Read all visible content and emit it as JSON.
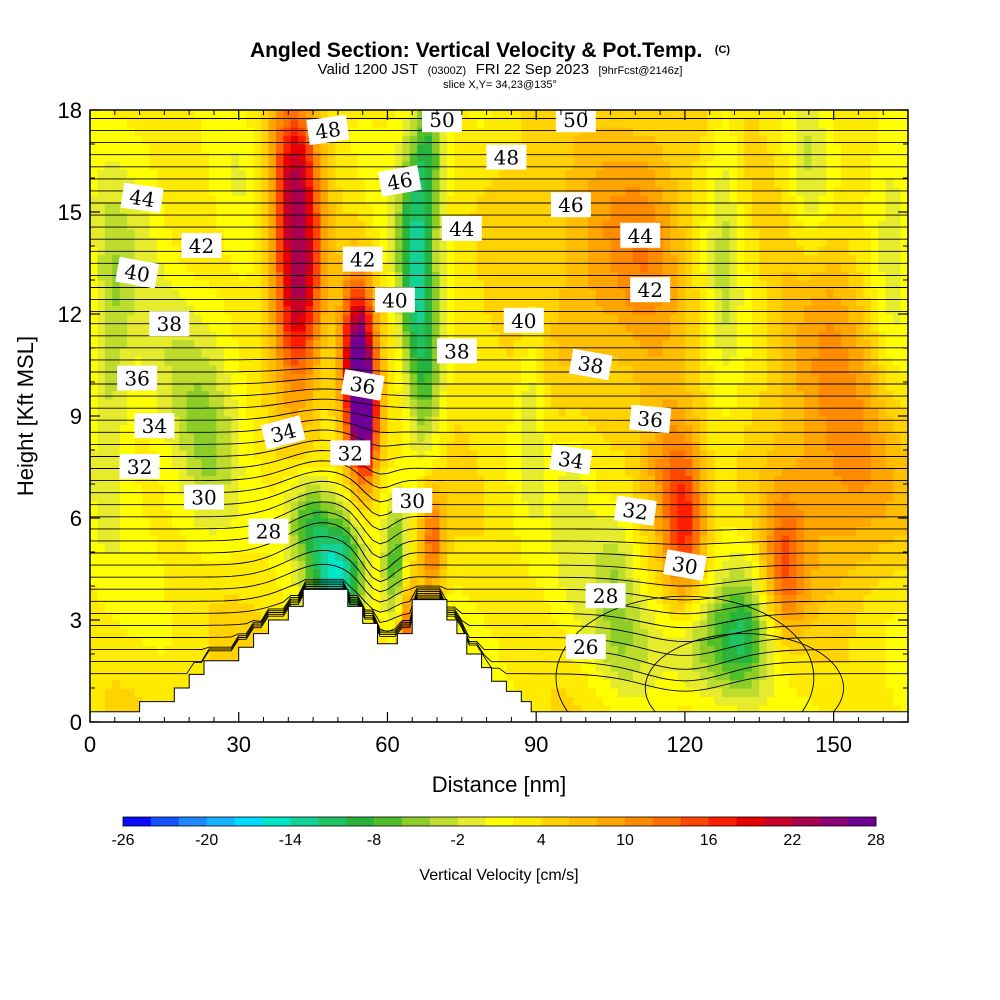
{
  "chart_data": {
    "type": "heatmap",
    "title": "Angled Section: Vertical Velocity & Pot.Temp.",
    "title_mark": "(C)",
    "subtitle_parts": [
      "Valid 1200 JST",
      "(0300Z)",
      "FRI 22 Sep 2023",
      "[9hrFcst@2146z]"
    ],
    "slice_text": "slice X,Y= 34,23@135°",
    "xlabel": "Distance [nm]",
    "ylabel": "Height [Kft MSL]",
    "xlim": [
      0,
      165
    ],
    "ylim": [
      0,
      18
    ],
    "xticks": [
      0,
      30,
      60,
      90,
      120,
      150
    ],
    "yticks": [
      0,
      3,
      6,
      9,
      12,
      15,
      18
    ],
    "colorbar": {
      "label": "Vertical Velocity [cm/s]",
      "min": -26,
      "max": 28,
      "step": 2,
      "tick_labels": [
        -26,
        -20,
        -14,
        -8,
        -2,
        4,
        10,
        16,
        22,
        28
      ],
      "colors": [
        "#0a0aff",
        "#1452ff",
        "#1e88ff",
        "#14b4ff",
        "#00dcff",
        "#00e6c8",
        "#14d296",
        "#1ec364",
        "#28b43c",
        "#50be28",
        "#8ccd28",
        "#bedc2d",
        "#e6eb2d",
        "#ffff00",
        "#ffeb00",
        "#ffd200",
        "#ffbe00",
        "#ffa500",
        "#ff8c00",
        "#ff6e00",
        "#ff4600",
        "#ff1e00",
        "#e60000",
        "#c80028",
        "#aa0050",
        "#8c0078",
        "#6e0096"
      ]
    },
    "terrain_profile": [
      [
        0,
        0.3
      ],
      [
        10,
        0.3
      ],
      [
        10,
        0.6
      ],
      [
        17,
        0.6
      ],
      [
        17,
        1.0
      ],
      [
        20,
        1.0
      ],
      [
        20,
        1.4
      ],
      [
        23,
        1.4
      ],
      [
        23,
        1.8
      ],
      [
        30,
        1.8
      ],
      [
        30,
        2.2
      ],
      [
        33,
        2.2
      ],
      [
        33,
        2.6
      ],
      [
        36,
        2.6
      ],
      [
        36,
        3.0
      ],
      [
        40,
        3.0
      ],
      [
        40,
        3.4
      ],
      [
        43,
        3.4
      ],
      [
        43,
        3.9
      ],
      [
        52,
        3.9
      ],
      [
        52,
        3.4
      ],
      [
        55,
        3.4
      ],
      [
        55,
        2.9
      ],
      [
        58,
        2.9
      ],
      [
        58,
        2.3
      ],
      [
        62,
        2.3
      ],
      [
        62,
        2.6
      ],
      [
        65,
        2.6
      ],
      [
        65,
        3.6
      ],
      [
        72,
        3.6
      ],
      [
        72,
        3.0
      ],
      [
        74,
        3.0
      ],
      [
        74,
        2.6
      ],
      [
        76,
        2.6
      ],
      [
        76,
        2.0
      ],
      [
        79,
        2.0
      ],
      [
        79,
        1.6
      ],
      [
        81,
        1.6
      ],
      [
        81,
        1.2
      ],
      [
        84,
        1.2
      ],
      [
        84,
        0.9
      ],
      [
        87,
        0.9
      ],
      [
        87,
        0.6
      ],
      [
        89,
        0.6
      ],
      [
        89,
        0.3
      ],
      [
        165,
        0.3
      ]
    ],
    "velocity_features": [
      {
        "x": 42,
        "y": 13,
        "sx": 3.5,
        "sy": 2.3,
        "amp": 22
      },
      {
        "x": 41,
        "y": 16.5,
        "sx": 3,
        "sy": 1.4,
        "amp": 10
      },
      {
        "x": 54,
        "y": 10.5,
        "sx": 2.3,
        "sy": 1.8,
        "amp": 26
      },
      {
        "x": 55.5,
        "y": 8.8,
        "sx": 1.8,
        "sy": 1.2,
        "amp": 18
      },
      {
        "x": 65.5,
        "y": 13.5,
        "sx": 2.5,
        "sy": 2.6,
        "amp": -13
      },
      {
        "x": 68,
        "y": 10,
        "sx": 2.5,
        "sy": 2.0,
        "amp": -9
      },
      {
        "x": 68.5,
        "y": 16.8,
        "sx": 2.2,
        "sy": 1.5,
        "amp": -9
      },
      {
        "x": 50,
        "y": 4.3,
        "sx": 4,
        "sy": 1.3,
        "amp": -20
      },
      {
        "x": 44,
        "y": 6.0,
        "sx": 3.5,
        "sy": 1.0,
        "amp": -10
      },
      {
        "x": 62,
        "y": 4.5,
        "sx": 2.0,
        "sy": 1.4,
        "amp": -12
      },
      {
        "x": 64,
        "y": 2.8,
        "sx": 1.5,
        "sy": 1.4,
        "amp": 14
      },
      {
        "x": 69,
        "y": 5.3,
        "sx": 1.8,
        "sy": 1.2,
        "amp": 11
      },
      {
        "x": 108,
        "y": 2.5,
        "sx": 5,
        "sy": 1.3,
        "amp": -6
      },
      {
        "x": 125,
        "y": 2.2,
        "sx": 7,
        "sy": 1.2,
        "amp": -9
      },
      {
        "x": 132,
        "y": 2.8,
        "sx": 4,
        "sy": 1.5,
        "amp": -8
      },
      {
        "x": 120,
        "y": 5.8,
        "sx": 3,
        "sy": 1.6,
        "amp": 14
      },
      {
        "x": 116,
        "y": 7.8,
        "sx": 4,
        "sy": 1.5,
        "amp": 7
      },
      {
        "x": 140,
        "y": 4.5,
        "sx": 3,
        "sy": 1.5,
        "amp": 9
      },
      {
        "x": 112,
        "y": 13.5,
        "sx": 6,
        "sy": 3.0,
        "amp": 7
      },
      {
        "x": 100,
        "y": 13,
        "sx": 5,
        "sy": 3.0,
        "amp": 4
      },
      {
        "x": 147,
        "y": 11,
        "sx": 8,
        "sy": 3.0,
        "amp": 7
      },
      {
        "x": 155,
        "y": 6.5,
        "sx": 8,
        "sy": 2.0,
        "amp": 5
      },
      {
        "x": 4,
        "y": 11,
        "sx": 3,
        "sy": 3.0,
        "amp": -7
      },
      {
        "x": 20,
        "y": 10.5,
        "sx": 6,
        "sy": 2.5,
        "amp": -4
      },
      {
        "x": 10,
        "y": 14.5,
        "sx": 5,
        "sy": 2.5,
        "amp": -4
      },
      {
        "x": 30,
        "y": 16.5,
        "sx": 4,
        "sy": 2.0,
        "amp": -3
      },
      {
        "x": 24,
        "y": 7.5,
        "sx": 4,
        "sy": 2.0,
        "amp": -4
      },
      {
        "x": 89,
        "y": 9.2,
        "sx": 2,
        "sy": 2.0,
        "amp": -5
      },
      {
        "x": 98,
        "y": 6.8,
        "sx": 3,
        "sy": 2.0,
        "amp": -4
      },
      {
        "x": 128,
        "y": 14.5,
        "sx": 2.5,
        "sy": 4.0,
        "amp": -5
      },
      {
        "x": 145,
        "y": 16,
        "sx": 3,
        "sy": 2.5,
        "amp": -5
      },
      {
        "x": 162,
        "y": 14,
        "sx": 3,
        "sy": 4.0,
        "amp": -4
      },
      {
        "x": 106,
        "y": 4.8,
        "sx": 3,
        "sy": 1.2,
        "amp": -5
      },
      {
        "x": 87,
        "y": 16.5,
        "sx": 5,
        "sy": 2.0,
        "amp": 3
      }
    ],
    "contour_labels": [
      {
        "text": "48",
        "x": 48,
        "y": 17.4,
        "angle": -8
      },
      {
        "text": "50",
        "x": 71,
        "y": 17.7,
        "angle": 0
      },
      {
        "text": "50",
        "x": 98,
        "y": 17.7,
        "angle": 0
      },
      {
        "text": "48",
        "x": 84,
        "y": 16.6,
        "angle": 0
      },
      {
        "text": "46",
        "x": 62.5,
        "y": 15.9,
        "angle": -10
      },
      {
        "text": "46",
        "x": 97,
        "y": 15.2,
        "angle": 0
      },
      {
        "text": "44",
        "x": 10.5,
        "y": 15.4,
        "angle": 8
      },
      {
        "text": "44",
        "x": 75,
        "y": 14.5,
        "angle": 0
      },
      {
        "text": "44",
        "x": 111,
        "y": 14.3,
        "angle": 0
      },
      {
        "text": "42",
        "x": 22.5,
        "y": 14.0,
        "angle": 0
      },
      {
        "text": "42",
        "x": 55,
        "y": 13.6,
        "angle": 0
      },
      {
        "text": "42",
        "x": 113,
        "y": 12.7,
        "angle": 0
      },
      {
        "text": "40",
        "x": 9.5,
        "y": 13.2,
        "angle": 10
      },
      {
        "text": "40",
        "x": 61.5,
        "y": 12.4,
        "angle": 0
      },
      {
        "text": "40",
        "x": 87.5,
        "y": 11.8,
        "angle": 0
      },
      {
        "text": "38",
        "x": 16,
        "y": 11.7,
        "angle": 0
      },
      {
        "text": "38",
        "x": 74,
        "y": 10.9,
        "angle": 0
      },
      {
        "text": "38",
        "x": 101,
        "y": 10.5,
        "angle": 10
      },
      {
        "text": "36",
        "x": 9.5,
        "y": 10.1,
        "angle": 0
      },
      {
        "text": "36",
        "x": 55,
        "y": 9.9,
        "angle": 10
      },
      {
        "text": "36",
        "x": 113,
        "y": 8.9,
        "angle": 5
      },
      {
        "text": "34",
        "x": 13,
        "y": 8.7,
        "angle": 0
      },
      {
        "text": "34",
        "x": 39,
        "y": 8.5,
        "angle": -15
      },
      {
        "text": "34",
        "x": 97,
        "y": 7.7,
        "angle": 8
      },
      {
        "text": "32",
        "x": 10,
        "y": 7.5,
        "angle": 0
      },
      {
        "text": "32",
        "x": 52.5,
        "y": 7.9,
        "angle": 0
      },
      {
        "text": "32",
        "x": 110,
        "y": 6.2,
        "angle": 8
      },
      {
        "text": "30",
        "x": 23,
        "y": 6.6,
        "angle": 0
      },
      {
        "text": "30",
        "x": 65,
        "y": 6.5,
        "angle": 0
      },
      {
        "text": "30",
        "x": 120,
        "y": 4.6,
        "angle": 10
      },
      {
        "text": "28",
        "x": 36,
        "y": 5.6,
        "angle": 0
      },
      {
        "text": "28",
        "x": 104,
        "y": 3.7,
        "angle": 0
      },
      {
        "text": "26",
        "x": 100,
        "y": 2.2,
        "angle": 0
      }
    ]
  }
}
